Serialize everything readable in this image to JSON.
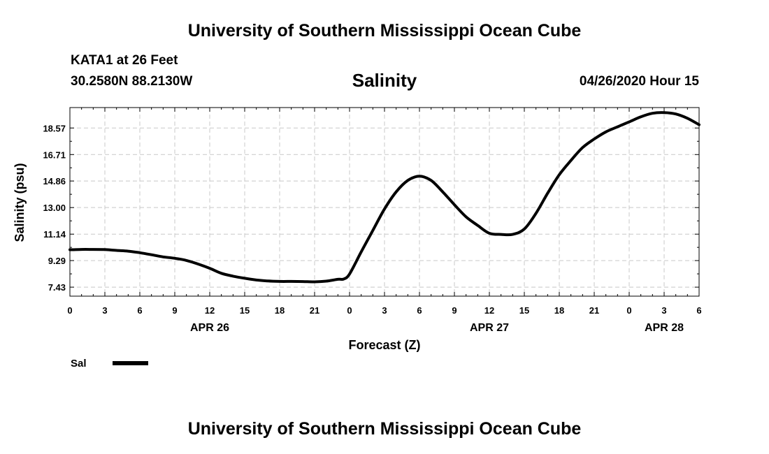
{
  "header": {
    "title": "University of Southern Mississippi Ocean Cube",
    "station": "KATA1 at 26 Feet",
    "coords": "30.2580N 88.2130W",
    "variable": "Salinity",
    "datetime": "04/26/2020 Hour 15"
  },
  "footer": {
    "title": "University of Southern Mississippi Ocean Cube"
  },
  "colors": {
    "line": "#000000",
    "grid": "#c8c8c8",
    "background": "#ffffff"
  },
  "chart_data": {
    "type": "line",
    "title": "Salinity",
    "xlabel": "Forecast (Z)",
    "ylabel": "Salinity (psu)",
    "xlim": [
      0,
      54
    ],
    "ylim": [
      6.8,
      20.0
    ],
    "xtick_positions": [
      0,
      3,
      6,
      9,
      12,
      15,
      18,
      21,
      24,
      27,
      30,
      33,
      36,
      39,
      42,
      45,
      48,
      51,
      54
    ],
    "xtick_labels": [
      "0",
      "3",
      "6",
      "9",
      "12",
      "15",
      "18",
      "21",
      "0",
      "3",
      "6",
      "9",
      "12",
      "15",
      "18",
      "21",
      "0",
      "3",
      "6"
    ],
    "date_labels": [
      {
        "at": 12,
        "text": "APR 26"
      },
      {
        "at": 36,
        "text": "APR 27"
      },
      {
        "at": 51,
        "text": "APR 28"
      }
    ],
    "yticks": [
      7.43,
      9.29,
      11.14,
      13.0,
      14.86,
      16.71,
      18.57
    ],
    "ytick_labels": [
      "7.43",
      "9.29",
      "11.14",
      "13.00",
      "14.86",
      "16.71",
      "18.57"
    ],
    "grid": true,
    "legend": "bottom-left",
    "series": [
      {
        "name": "Sal",
        "x": [
          0,
          1,
          2,
          3,
          4,
          5,
          6,
          7,
          8,
          9,
          10,
          11,
          12,
          13,
          14,
          15,
          16,
          17,
          18,
          19,
          20,
          21,
          22,
          23,
          23.5,
          24,
          25,
          26,
          27,
          28,
          29,
          30,
          31,
          32,
          33,
          34,
          35,
          36,
          37,
          38,
          39,
          40,
          41,
          42,
          43,
          44,
          45,
          46,
          47,
          48,
          49,
          50,
          51,
          52,
          53,
          54
        ],
        "y": [
          10.05,
          10.07,
          10.07,
          10.06,
          10.0,
          9.95,
          9.84,
          9.7,
          9.55,
          9.45,
          9.3,
          9.05,
          8.75,
          8.4,
          8.2,
          8.05,
          7.93,
          7.86,
          7.83,
          7.83,
          7.82,
          7.8,
          7.85,
          7.98,
          8.0,
          8.35,
          9.9,
          11.4,
          12.9,
          14.1,
          14.9,
          15.2,
          14.9,
          14.1,
          13.2,
          12.35,
          11.75,
          11.2,
          11.12,
          11.12,
          11.5,
          12.6,
          14.0,
          15.3,
          16.3,
          17.2,
          17.8,
          18.3,
          18.65,
          19.0,
          19.35,
          19.6,
          19.65,
          19.55,
          19.25,
          18.8
        ]
      }
    ]
  }
}
